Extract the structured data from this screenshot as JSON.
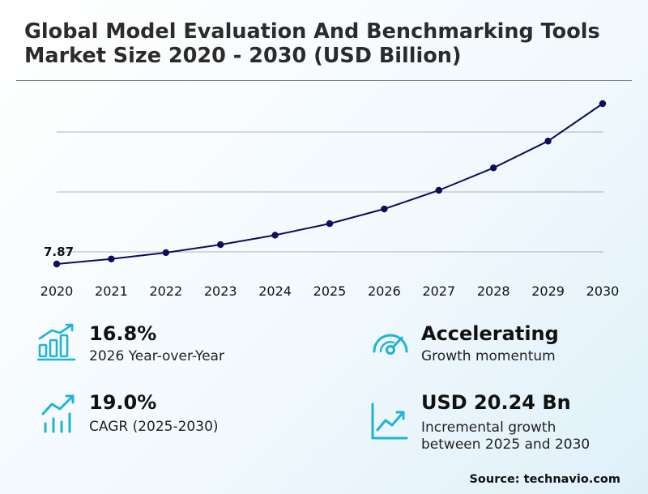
{
  "title": "Global Model Evaluation And Benchmarking Tools Market Size 2020 - 2030 (USD Billion)",
  "chart_data": {
    "type": "line",
    "x": [
      "2020",
      "2021",
      "2022",
      "2023",
      "2024",
      "2025",
      "2026",
      "2027",
      "2028",
      "2029",
      "2030"
    ],
    "values": [
      7.87,
      8.72,
      9.79,
      11.14,
      12.73,
      14.69,
      17.16,
      20.31,
      24.09,
      28.61,
      34.93
    ],
    "annotations": [
      {
        "x": "2020",
        "label": "7.87"
      }
    ],
    "ylim": [
      0,
      40
    ],
    "grid": true,
    "line_color": "#0d0d5c"
  },
  "stats": [
    {
      "value": "16.8%",
      "label": "2026 Year-over-Year",
      "icon": "bar-growth-icon"
    },
    {
      "value": "Accelerating",
      "label": "Growth momentum",
      "icon": "speedometer-icon"
    },
    {
      "value": "19.0%",
      "label": "CAGR (2025-2030)",
      "icon": "trend-bars-icon"
    },
    {
      "value": "USD 20.24 Bn",
      "label_line1": "Incremental growth",
      "label_line2": "between 2025 and 2030",
      "icon": "line-chart-icon"
    }
  ],
  "icon_color": "#1fb3d6",
  "source": "Source: technavio.com"
}
